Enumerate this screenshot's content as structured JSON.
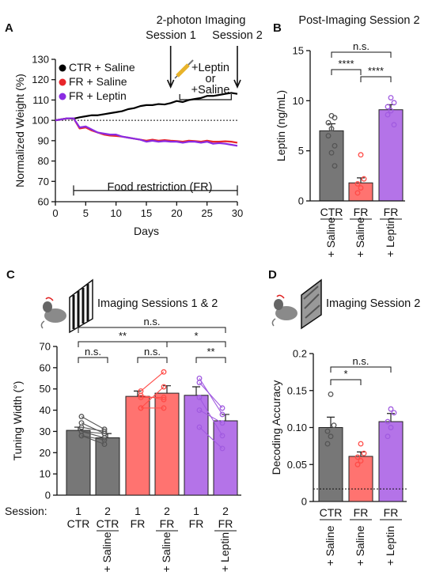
{
  "colors": {
    "ctr": "#777777",
    "fr": "#ff7370",
    "lep": "#b473e8",
    "ctr_line": "#000000",
    "fr_line": "#e8262b",
    "lep_line": "#8a2be2",
    "axis": "#111111"
  },
  "chart_data": [
    {
      "panel": "A",
      "type": "line",
      "annotations": {
        "imaging_title": "2-photon Imaging",
        "session1": "Session 1",
        "session2": "Session 2",
        "treat1": "+Leptin",
        "treat2": "or",
        "treat3": "+Saline",
        "food": "Food restriction (FR)"
      },
      "xlabel": "Days",
      "ylabel": "Normalized Weight (%)",
      "xlim": [
        0,
        30
      ],
      "ylim": [
        60,
        130
      ],
      "xticks": [
        0,
        5,
        10,
        15,
        20,
        25,
        30
      ],
      "yticks": [
        60,
        70,
        80,
        90,
        100,
        110,
        120,
        130
      ],
      "x": [
        0,
        1,
        2,
        3,
        4,
        5,
        6,
        7,
        8,
        9,
        10,
        11,
        12,
        13,
        14,
        15,
        16,
        17,
        18,
        19,
        20,
        21,
        22,
        23,
        24,
        25,
        26,
        27,
        28,
        29,
        30
      ],
      "series": [
        {
          "name": "CTR + Saline",
          "values": [
            100,
            100.5,
            101,
            100.8,
            101.5,
            102,
            102.5,
            102.5,
            103,
            103.5,
            104,
            104.5,
            105.5,
            106,
            107,
            107.5,
            107.5,
            108,
            107.8,
            108.5,
            109.5,
            109,
            110,
            110.5,
            111,
            112,
            112,
            112.5,
            113,
            113.5,
            113
          ]
        },
        {
          "name": "FR + Saline",
          "values": [
            100,
            100.5,
            101,
            101,
            96,
            96.5,
            95,
            94,
            93,
            92.5,
            92.3,
            92,
            91.5,
            91,
            90.5,
            90,
            90.5,
            90,
            90.3,
            90,
            89.8,
            89.5,
            90,
            89.8,
            89.5,
            90,
            89.5,
            89.5,
            89.7,
            89.5,
            89
          ]
        },
        {
          "name": "FR + Leptin",
          "values": [
            100,
            100.5,
            101,
            101,
            96.5,
            97,
            95.5,
            94,
            93.5,
            93,
            93,
            92,
            91.5,
            91,
            90.5,
            89.5,
            90,
            89.5,
            89.8,
            89.5,
            89.5,
            89,
            89.5,
            89.5,
            89,
            89.5,
            88.5,
            88.8,
            88.5,
            88,
            87.5
          ]
        }
      ]
    },
    {
      "panel": "B",
      "type": "bar",
      "title": "Post-Imaging Session 2",
      "ylabel": "Leptin (ng/mL)",
      "ylim": [
        0,
        15
      ],
      "yticks": [
        0,
        5,
        10,
        15
      ],
      "categories": [
        "CTR",
        "FR",
        "FR"
      ],
      "sublabels": [
        "+ Saline",
        "+ Saline",
        "+ Leptin"
      ],
      "values": [
        7,
        1.8,
        9.1
      ],
      "errors": [
        0.7,
        0.5,
        0.5
      ],
      "points": [
        [
          8.5,
          8.3,
          7.8,
          7.2,
          6.5,
          5.5,
          4.8,
          3.5
        ],
        [
          4.6,
          2.2,
          1.7,
          1.3,
          0.8
        ],
        [
          10.3,
          9.8,
          9.4,
          9.0,
          8.6,
          7.6
        ]
      ],
      "significance": [
        {
          "from": 0,
          "to": 2,
          "label": "n.s."
        },
        {
          "from": 0,
          "to": 1,
          "label": "****"
        },
        {
          "from": 1,
          "to": 2,
          "label": "****"
        }
      ]
    },
    {
      "panel": "C",
      "type": "bar",
      "title": "Imaging Sessions 1 & 2",
      "ylabel": "Tuning Width (°)",
      "ylim": [
        0,
        70
      ],
      "yticks": [
        0,
        10,
        20,
        30,
        40,
        50,
        60,
        70
      ],
      "session_label": "Session:",
      "sessions": [
        "1",
        "2",
        "1",
        "2",
        "1",
        "2"
      ],
      "categories": [
        "CTR",
        "CTR",
        "FR",
        "FR",
        "FR",
        "FR"
      ],
      "sublabels": [
        "",
        "+ Saline",
        "",
        "+ Saline",
        "",
        "+ Leptin"
      ],
      "values": [
        30.5,
        27,
        46.5,
        48,
        47,
        35
      ],
      "errors": [
        1.5,
        2,
        2.5,
        3.5,
        4,
        3
      ],
      "paired_points": [
        [
          [
            37,
            31
          ],
          [
            34,
            29
          ],
          [
            32,
            30
          ],
          [
            30,
            27
          ],
          [
            28,
            24
          ],
          [
            28,
            26
          ],
          [
            30,
            29
          ]
        ],
        [
          [
            49,
            58
          ],
          [
            47,
            45
          ],
          [
            46,
            46
          ],
          [
            41,
            51
          ],
          [
            41,
            41
          ]
        ],
        [
          [
            55,
            38
          ],
          [
            53,
            41
          ],
          [
            46,
            28
          ],
          [
            40,
            34
          ],
          [
            32,
            22
          ]
        ]
      ],
      "significance": [
        {
          "from": 0,
          "to": 5,
          "label": "n.s."
        },
        {
          "from": 0,
          "to": 3,
          "label": "**"
        },
        {
          "from": 3,
          "to": 5,
          "label": "*"
        },
        {
          "from": 0,
          "to": 1,
          "label": "n.s."
        },
        {
          "from": 2,
          "to": 3,
          "label": "n.s."
        },
        {
          "from": 4,
          "to": 5,
          "label": "**"
        }
      ]
    },
    {
      "panel": "D",
      "type": "bar",
      "title": "Imaging Session 2",
      "ylabel": "Decoding Accuracy",
      "ylim": [
        0,
        0.2
      ],
      "yticks": [
        0,
        0.05,
        0.1,
        0.15,
        0.2
      ],
      "ytick_labels": [
        "0",
        "0.05",
        "0.10",
        "0.15",
        "0.2"
      ],
      "categories": [
        "CTR",
        "FR",
        "FR"
      ],
      "sublabels": [
        "+ Saline",
        "+ Saline",
        "+ Leptin"
      ],
      "values": [
        0.1,
        0.061,
        0.108
      ],
      "errors": [
        0.014,
        0.006,
        0.011
      ],
      "chance": 0.017,
      "points": [
        [
          0.145,
          0.103,
          0.095,
          0.088,
          0.078
        ],
        [
          0.078,
          0.065,
          0.06,
          0.055,
          0.05
        ],
        [
          0.125,
          0.12,
          0.108,
          0.1,
          0.088
        ]
      ],
      "significance": [
        {
          "from": 0,
          "to": 2,
          "label": "n.s."
        },
        {
          "from": 0,
          "to": 1,
          "label": "*"
        }
      ]
    }
  ]
}
